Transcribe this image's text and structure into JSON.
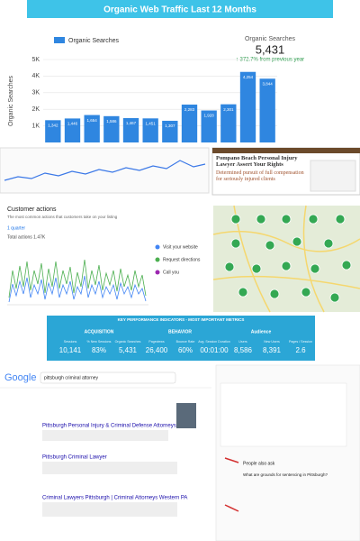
{
  "chart_data": {
    "type": "bar",
    "title": "Organic Web Traffic Last 12 Months",
    "legend": "Organic Searches",
    "y_label": "Organic Searches",
    "summary_label": "Organic Searches",
    "summary_value": "5,431",
    "summary_change": "↑ 372.7% from previous year",
    "categories": [
      null,
      null,
      null,
      null,
      null,
      null,
      null,
      null,
      null,
      null,
      null,
      null
    ],
    "values": [
      1342,
      1446,
      1654,
      1586,
      1467,
      1451,
      1307,
      2283,
      1928,
      2301,
      4254,
      3844
    ],
    "value_labels": [
      "1,342",
      "1,446",
      "1,654",
      "1,586",
      "1,467",
      "1,451",
      "1,307",
      "2,283",
      "1,928",
      "2,301",
      "4,254",
      "3,844"
    ],
    "color": "#2f86e0",
    "ylim": [
      0,
      5000
    ],
    "yticks": [
      {
        "value": 1000,
        "label": "1K"
      },
      {
        "value": 2000,
        "label": "2K"
      },
      {
        "value": 3000,
        "label": "3K"
      },
      {
        "value": 4000,
        "label": "4K"
      },
      {
        "value": 5000,
        "label": "5K"
      }
    ],
    "grid": true
  },
  "ad": {
    "title": "Pompano Beach Personal Injury Lawyer Assert Your Rights",
    "subtitle": "Determined pursuit of full compensation for seriously injured clients"
  },
  "customer_actions": {
    "title": "Customer actions",
    "subtitle": "The most common actions that customers take on your listing",
    "period": "1 quarter",
    "total": "Total actions 1.47K",
    "legend": [
      "Visit your website",
      "Request directions",
      "Call you"
    ]
  },
  "kpi": {
    "title": "KEY PERFORMANCE INDICATORS - MOST IMPORTANT METRICS",
    "groups": [
      "ACQUISITION",
      "BEHAVIOR",
      "Audience"
    ],
    "metrics": [
      {
        "name": "Sessions",
        "value": "10,141"
      },
      {
        "name": "% New Sessions",
        "value": "83%"
      },
      {
        "name": "Organic Searches",
        "value": "5,431"
      },
      {
        "name": "Pageviews",
        "value": "26,400"
      },
      {
        "name": "Bounce Rate",
        "value": "60%"
      },
      {
        "name": "Avg. Session Duration",
        "value": "00:01:00"
      },
      {
        "name": "Users",
        "value": "8,586"
      },
      {
        "name": "New Users",
        "value": "8,391"
      },
      {
        "name": "Pages / Session",
        "value": "2.6"
      }
    ]
  },
  "search": {
    "logo": "Google",
    "query": "pittsburgh criminal attorney",
    "results": [
      "Pittsburgh Personal Injury & Criminal Defense Attorneys",
      "Pittsburgh Criminal Lawyer",
      "Criminal Lawyers Pittsburgh | Criminal Attorneys Western PA"
    ],
    "people_also_ask": "People also ask",
    "question": "What are grounds for sentencing in Pittsburgh?"
  }
}
